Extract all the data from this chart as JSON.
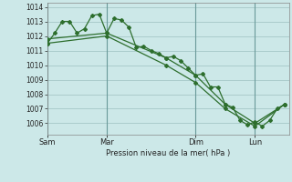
{
  "title": "Pression niveau de la mer( hPa )",
  "bg_color": "#cce8e8",
  "grid_color": "#aacccc",
  "line_color": "#2d6e2d",
  "ylim": [
    1005.2,
    1014.3
  ],
  "yticks": [
    1006,
    1007,
    1008,
    1009,
    1010,
    1011,
    1012,
    1013,
    1014
  ],
  "day_labels": [
    "Sam",
    "Mar",
    "Dim",
    "Lun"
  ],
  "day_positions": [
    0,
    48,
    120,
    168
  ],
  "total_hours": 196,
  "series1_x": [
    0,
    6,
    12,
    18,
    24,
    30,
    36,
    42,
    48,
    54,
    60,
    66,
    72,
    78,
    84,
    90,
    96,
    102,
    108,
    114,
    120,
    126,
    132,
    138,
    144,
    150,
    156,
    162,
    168,
    174,
    180,
    186,
    192
  ],
  "series1_y": [
    1011.5,
    1012.2,
    1013.0,
    1013.0,
    1012.2,
    1012.5,
    1013.4,
    1013.5,
    1012.2,
    1013.2,
    1013.1,
    1012.6,
    1011.2,
    1011.3,
    1011.0,
    1010.8,
    1010.5,
    1010.6,
    1010.3,
    1009.8,
    1009.3,
    1009.4,
    1008.5,
    1008.5,
    1007.3,
    1007.1,
    1006.2,
    1005.9,
    1006.1,
    1005.8,
    1006.2,
    1007.0,
    1007.3
  ],
  "series2_x": [
    0,
    48,
    96,
    120,
    144,
    168,
    192
  ],
  "series2_y": [
    1011.8,
    1012.2,
    1010.5,
    1009.3,
    1007.3,
    1006.0,
    1007.3
  ],
  "series3_x": [
    0,
    48,
    96,
    120,
    144,
    168,
    192
  ],
  "series3_y": [
    1011.5,
    1012.0,
    1010.0,
    1008.8,
    1007.0,
    1005.8,
    1007.3
  ]
}
